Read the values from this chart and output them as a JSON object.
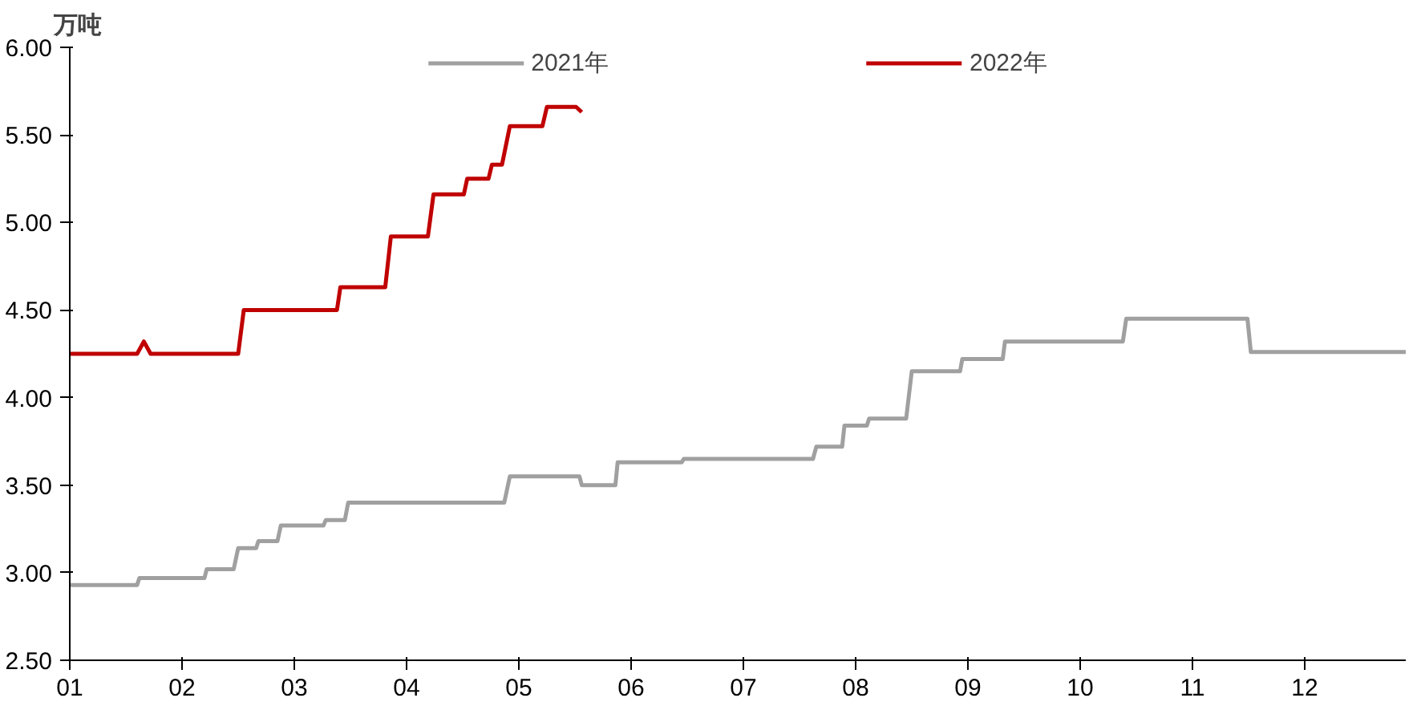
{
  "chart_data": {
    "type": "line",
    "ylabel": "万吨",
    "xlim": [
      1,
      12.9
    ],
    "xticks": [
      {
        "value": 1,
        "label": "01"
      },
      {
        "value": 2,
        "label": "02"
      },
      {
        "value": 3,
        "label": "03"
      },
      {
        "value": 4,
        "label": "04"
      },
      {
        "value": 5,
        "label": "05"
      },
      {
        "value": 6,
        "label": "06"
      },
      {
        "value": 7,
        "label": "07"
      },
      {
        "value": 8,
        "label": "08"
      },
      {
        "value": 9,
        "label": "09"
      },
      {
        "value": 10,
        "label": "10"
      },
      {
        "value": 11,
        "label": "11"
      },
      {
        "value": 12,
        "label": "12"
      }
    ],
    "ylim": [
      2.5,
      6
    ],
    "yticks": [
      {
        "value": 2.5,
        "label": "2.50"
      },
      {
        "value": 3,
        "label": "3.00"
      },
      {
        "value": 3.5,
        "label": "3.50"
      },
      {
        "value": 4,
        "label": "4.00"
      },
      {
        "value": 4.5,
        "label": "4.50"
      },
      {
        "value": 5,
        "label": "5.00"
      },
      {
        "value": 5.5,
        "label": "5.50"
      },
      {
        "value": 6,
        "label": "6.00"
      }
    ],
    "grid": false,
    "legend": "top",
    "marker": "none",
    "line_style": "solid",
    "series": [
      {
        "name": "2021年",
        "color": "#a0a0a0",
        "x": [
          1,
          1.6,
          1.62,
          2.2,
          2.22,
          2.46,
          2.5,
          2.66,
          2.68,
          2.85,
          2.88,
          3.26,
          3.28,
          3.45,
          3.48,
          4.87,
          4.92,
          5.54,
          5.56,
          5.86,
          5.88,
          6.45,
          6.47,
          7.62,
          7.65,
          7.88,
          7.9,
          8.1,
          8.12,
          8.45,
          8.5,
          8.93,
          8.95,
          9.31,
          9.33,
          10.38,
          10.41,
          11.49,
          11.52,
          12.9
        ],
        "values": [
          2.93,
          2.93,
          2.97,
          2.97,
          3.02,
          3.02,
          3.14,
          3.14,
          3.18,
          3.18,
          3.27,
          3.27,
          3.3,
          3.3,
          3.4,
          3.4,
          3.55,
          3.55,
          3.5,
          3.5,
          3.63,
          3.63,
          3.65,
          3.65,
          3.72,
          3.72,
          3.84,
          3.84,
          3.88,
          3.88,
          4.15,
          4.15,
          4.22,
          4.22,
          4.32,
          4.32,
          4.45,
          4.45,
          4.26,
          4.26
        ]
      },
      {
        "name": "2022年",
        "color": "#c00000",
        "x": [
          1,
          1.6,
          1.66,
          1.72,
          2.5,
          2.55,
          3.38,
          3.41,
          3.81,
          3.86,
          4.19,
          4.24,
          4.51,
          4.54,
          4.73,
          4.76,
          4.85,
          4.92,
          5.21,
          5.25,
          5.51,
          5.56
        ],
        "values": [
          4.25,
          4.25,
          4.32,
          4.25,
          4.25,
          4.5,
          4.5,
          4.63,
          4.63,
          4.92,
          4.92,
          5.16,
          5.16,
          5.25,
          5.25,
          5.33,
          5.33,
          5.55,
          5.55,
          5.66,
          5.66,
          5.63
        ]
      }
    ]
  }
}
